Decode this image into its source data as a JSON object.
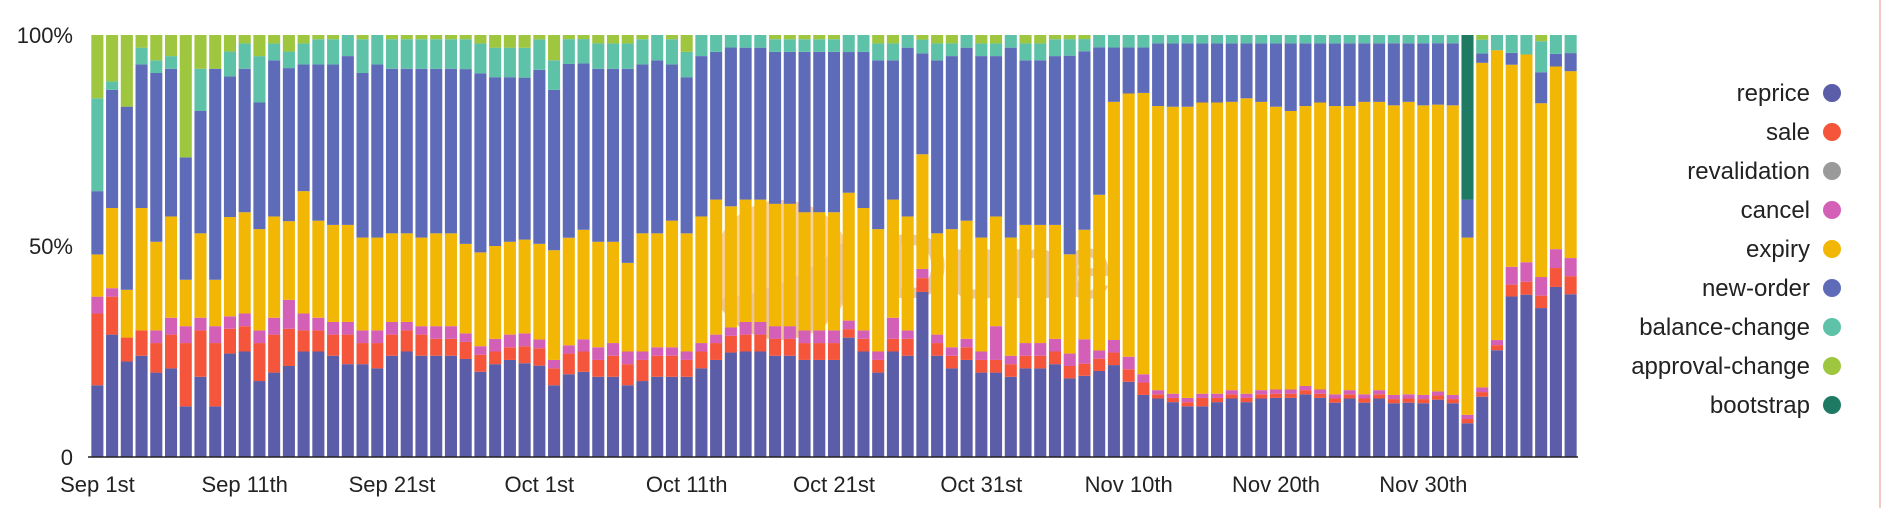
{
  "chart_data": {
    "type": "bar",
    "stacked": "percent",
    "x_start": "Sep 1st",
    "x_ticks": [
      "Sep 1st",
      "Sep 11th",
      "Sep 21st",
      "Oct 1st",
      "Oct 11th",
      "Oct 21st",
      "Oct 31st",
      "Nov 10th",
      "Nov 20th",
      "Nov 30th"
    ],
    "y_ticks": [
      "0",
      "50%",
      "100%"
    ],
    "ylim": [
      0,
      100
    ],
    "grid": false,
    "legend_position": "right",
    "watermark": "Dune",
    "series": [
      {
        "name": "reprice",
        "color": "#5b5da8",
        "values": [
          17,
          29,
          24,
          24,
          20,
          21,
          12,
          19,
          12,
          25,
          25,
          18,
          20,
          22,
          25,
          25,
          24,
          22,
          22,
          21,
          24,
          25,
          24,
          24,
          24,
          23,
          20,
          22,
          23,
          22,
          21,
          17,
          20,
          21,
          19,
          19,
          17,
          18,
          19,
          19,
          19,
          21,
          23,
          25,
          25,
          25,
          24,
          24,
          23,
          23,
          23,
          28,
          25,
          20,
          25,
          24,
          36,
          24,
          21,
          23,
          20,
          20,
          19,
          21,
          21,
          22,
          19,
          20,
          21,
          22,
          18,
          15,
          14,
          13,
          12,
          12,
          13,
          14,
          13,
          14,
          14,
          14,
          15,
          14,
          13,
          14,
          13,
          14,
          13,
          13,
          13,
          14,
          13,
          8,
          13,
          21,
          27,
          25,
          24,
          27,
          27
        ]
      },
      {
        "name": "sale",
        "color": "#f5563b",
        "values": [
          17,
          9,
          6,
          6,
          7,
          8,
          15,
          11,
          15,
          6,
          6,
          9,
          9,
          9,
          5,
          5,
          5,
          7,
          5,
          6,
          5,
          5,
          5,
          4,
          4,
          4,
          4,
          3,
          3,
          4,
          4,
          4,
          5,
          5,
          4,
          5,
          5,
          5,
          5,
          5,
          4,
          4,
          4,
          4,
          4,
          4,
          4,
          4,
          4,
          4,
          4,
          2,
          3,
          3,
          3,
          4,
          3,
          3,
          3,
          3,
          3,
          3,
          3,
          3,
          3,
          3,
          3,
          3,
          3,
          3,
          3,
          3,
          1,
          1,
          1,
          2,
          1,
          1,
          1,
          1,
          1,
          1,
          1,
          1,
          1,
          1,
          1,
          1,
          1,
          1,
          1,
          1,
          1,
          1,
          1,
          1,
          2,
          2,
          2,
          3,
          3
        ]
      },
      {
        "name": "revalidation",
        "color": "#9a9a9a",
        "values": [
          0,
          0,
          0,
          0,
          0,
          0,
          0,
          0,
          0,
          0,
          0,
          0,
          0,
          0,
          0,
          0,
          0,
          0,
          0,
          0,
          0,
          0,
          0,
          0,
          0,
          0,
          0,
          0,
          0,
          0,
          0,
          0,
          0,
          0,
          0,
          0,
          0,
          0,
          0,
          0,
          0,
          0,
          0,
          0,
          0,
          0,
          0,
          0,
          0,
          0,
          0,
          0,
          0,
          0,
          0,
          0,
          0,
          0,
          0,
          0,
          0,
          0,
          0,
          0,
          0,
          0,
          0,
          0,
          0,
          0,
          0,
          0,
          0,
          0,
          0,
          0,
          0,
          0,
          0,
          0,
          0,
          0,
          0,
          0,
          0,
          0,
          0,
          0,
          0,
          0,
          0,
          0,
          0,
          0,
          0,
          0,
          0,
          0,
          0,
          0,
          0
        ]
      },
      {
        "name": "cancel",
        "color": "#d35fb7",
        "values": [
          4,
          2,
          0,
          0,
          3,
          4,
          4,
          3,
          4,
          3,
          3,
          3,
          4,
          7,
          4,
          3,
          3,
          3,
          3,
          3,
          3,
          2,
          2,
          3,
          3,
          2,
          2,
          3,
          3,
          3,
          2,
          2,
          2,
          3,
          3,
          3,
          3,
          2,
          2,
          2,
          2,
          2,
          2,
          2,
          3,
          3,
          3,
          3,
          3,
          3,
          3,
          2,
          2,
          2,
          5,
          2,
          2,
          2,
          2,
          2,
          2,
          8,
          2,
          3,
          3,
          3,
          3,
          6,
          2,
          3,
          3,
          2,
          1,
          1,
          1,
          1,
          1,
          1,
          1,
          1,
          1,
          1,
          1,
          1,
          1,
          1,
          1,
          1,
          1,
          1,
          1,
          1,
          1,
          1,
          1,
          1,
          3,
          3,
          3,
          3,
          3
        ]
      },
      {
        "name": "expiry",
        "color": "#f2b705",
        "values": [
          10,
          19,
          12,
          29,
          21,
          24,
          11,
          20,
          11,
          24,
          24,
          24,
          24,
          19,
          29,
          23,
          23,
          23,
          22,
          22,
          21,
          21,
          21,
          22,
          22,
          21,
          22,
          22,
          22,
          22,
          22,
          26,
          26,
          27,
          25,
          24,
          21,
          28,
          27,
          30,
          28,
          30,
          32,
          29,
          29,
          29,
          29,
          29,
          28,
          28,
          28,
          30,
          29,
          29,
          28,
          27,
          25,
          24,
          28,
          28,
          27,
          26,
          28,
          28,
          28,
          27,
          24,
          27,
          38,
          57,
          63,
          68,
          68,
          68,
          69,
          69,
          69,
          69,
          70,
          69,
          67,
          66,
          67,
          68,
          69,
          68,
          70,
          69,
          70,
          70,
          70,
          70,
          70,
          42,
          70,
          57,
          34,
          32,
          28,
          29,
          31
        ]
      },
      {
        "name": "new-order",
        "color": "#5e6bb8",
        "values": [
          15,
          28,
          46,
          34,
          40,
          35,
          29,
          29,
          50,
          34,
          34,
          30,
          37,
          37,
          30,
          37,
          38,
          40,
          39,
          41,
          39,
          39,
          40,
          39,
          39,
          41,
          42,
          40,
          39,
          38,
          40,
          38,
          42,
          41,
          41,
          41,
          46,
          40,
          41,
          37,
          37,
          38,
          35,
          38,
          36,
          36,
          36,
          36,
          38,
          38,
          38,
          33,
          37,
          40,
          33,
          40,
          22,
          41,
          41,
          41,
          43,
          38,
          45,
          39,
          39,
          40,
          48,
          44,
          36,
          13,
          11,
          11,
          15,
          15,
          15,
          14,
          14,
          14,
          13,
          14,
          15,
          16,
          15,
          14,
          15,
          15,
          14,
          14,
          15,
          14,
          15,
          15,
          15,
          9,
          2,
          0,
          2,
          0,
          5,
          2,
          3
        ]
      },
      {
        "name": "balance-change",
        "color": "#5ec2a8",
        "values": [
          22,
          2,
          0,
          4,
          3,
          3,
          0,
          10,
          0,
          6,
          6,
          11,
          4,
          4,
          5,
          6,
          6,
          5,
          8,
          7,
          7,
          7,
          7,
          7,
          7,
          7,
          7,
          7,
          7,
          7,
          7,
          7,
          6,
          6,
          6,
          6,
          6,
          6,
          6,
          6,
          6,
          5,
          4,
          3,
          3,
          3,
          3,
          3,
          3,
          3,
          3,
          4,
          4,
          4,
          4,
          3,
          3,
          4,
          3,
          3,
          3,
          3,
          3,
          4,
          4,
          4,
          4,
          3,
          3,
          3,
          3,
          3,
          2,
          2,
          2,
          2,
          2,
          2,
          2,
          2,
          2,
          2,
          2,
          2,
          2,
          2,
          2,
          2,
          2,
          2,
          2,
          2,
          2,
          0,
          3,
          3,
          3,
          3,
          5,
          3,
          3
        ]
      },
      {
        "name": "approval-change",
        "color": "#9ec63e",
        "values": [
          15,
          11,
          18,
          3,
          6,
          5,
          29,
          8,
          8,
          4,
          2,
          5,
          2,
          4,
          2,
          1,
          1,
          0,
          1,
          0,
          1,
          1,
          1,
          1,
          1,
          1,
          2,
          3,
          3,
          3,
          1,
          6,
          1,
          1,
          2,
          2,
          2,
          1,
          0,
          1,
          4,
          0,
          0,
          0,
          0,
          0,
          1,
          1,
          1,
          1,
          1,
          0,
          0,
          2,
          2,
          0,
          1,
          2,
          2,
          0,
          2,
          2,
          0,
          2,
          2,
          1,
          1,
          1,
          0,
          0,
          0,
          0,
          0,
          0,
          0,
          0,
          0,
          0,
          0,
          0,
          0,
          0,
          0,
          0,
          0,
          0,
          0,
          0,
          0,
          0,
          0,
          0,
          0,
          0,
          1,
          0,
          0,
          0,
          1,
          0,
          0
        ]
      },
      {
        "name": "bootstrap",
        "color": "#1f7a63",
        "values": [
          0,
          0,
          0,
          0,
          0,
          0,
          0,
          0,
          0,
          0,
          0,
          0,
          0,
          0,
          0,
          0,
          0,
          0,
          0,
          0,
          0,
          0,
          0,
          0,
          0,
          0,
          0,
          0,
          0,
          0,
          0,
          0,
          0,
          0,
          0,
          0,
          0,
          0,
          0,
          0,
          0,
          0,
          0,
          0,
          0,
          0,
          0,
          0,
          0,
          0,
          0,
          0,
          0,
          0,
          0,
          0,
          0,
          0,
          0,
          0,
          0,
          0,
          0,
          0,
          0,
          0,
          0,
          0,
          0,
          0,
          0,
          0,
          0,
          0,
          0,
          0,
          0,
          0,
          0,
          0,
          0,
          0,
          0,
          0,
          0,
          0,
          0,
          0,
          0,
          0,
          0,
          0,
          0,
          39,
          0,
          0,
          0,
          0,
          0,
          0,
          0
        ]
      }
    ],
    "legend_order": [
      "reprice",
      "sale",
      "revalidation",
      "cancel",
      "expiry",
      "new-order",
      "balance-change",
      "approval-change",
      "bootstrap"
    ]
  }
}
